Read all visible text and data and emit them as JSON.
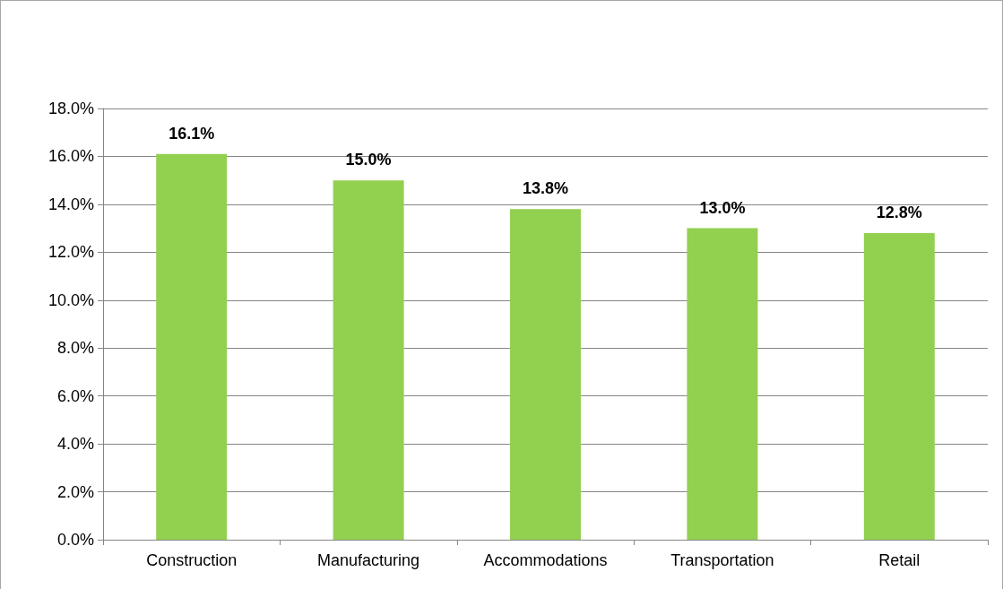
{
  "chart_data": {
    "type": "bar",
    "categories": [
      "Construction",
      "Manufacturing",
      "Accommodations",
      "Transportation",
      "Retail"
    ],
    "values": [
      16.1,
      15.0,
      13.8,
      13.0,
      12.8
    ],
    "value_labels": [
      "16.1%",
      "15.0%",
      "13.8%",
      "13.0%",
      "12.8%"
    ],
    "color": "#92d050",
    "ylim": [
      0,
      18
    ],
    "yticks": [
      {
        "value": 0,
        "label": "0.0%"
      },
      {
        "value": 2,
        "label": "2.0%"
      },
      {
        "value": 4,
        "label": "4.0%"
      },
      {
        "value": 6,
        "label": "6.0%"
      },
      {
        "value": 8,
        "label": "8.0%"
      },
      {
        "value": 10,
        "label": "10.0%"
      },
      {
        "value": 12,
        "label": "12.0%"
      },
      {
        "value": 14,
        "label": "14.0%"
      },
      {
        "value": 16,
        "label": "16.0%"
      },
      {
        "value": 18,
        "label": "18.0%"
      }
    ],
    "grid": "y"
  }
}
